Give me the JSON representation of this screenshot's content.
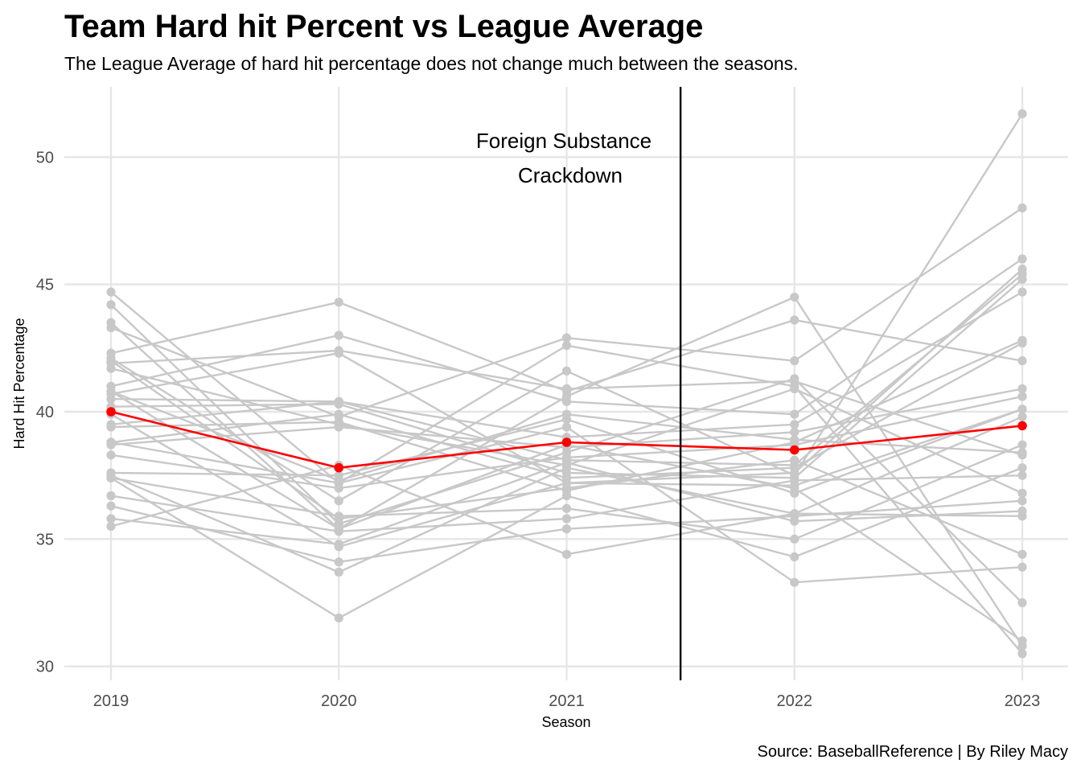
{
  "chart_data": {
    "type": "line",
    "title": "Team Hard hit Percent vs League Average",
    "subtitle": "The League Average of hard hit percentage does not change much between the seasons.",
    "xlabel": "Season",
    "ylabel": "Hard Hit Percentage",
    "caption": "Source: BaseballReference | By Riley Macy",
    "annotation": {
      "lines": [
        "Foreign Substance",
        "Crackdown"
      ],
      "x": 2021.5
    },
    "x": [
      2019,
      2020,
      2021,
      2022,
      2023
    ],
    "x_tick_labels": [
      "2019",
      "2020",
      "2021",
      "2022",
      "2023"
    ],
    "ylim": [
      29.5,
      53.0
    ],
    "y_ticks": [
      30,
      35,
      40,
      45,
      50
    ],
    "y_tick_labels": [
      "30",
      "35",
      "40",
      "45",
      "50"
    ],
    "grid": true,
    "colors": {
      "team": "#c8c8c8",
      "league_average": "#ff0000",
      "vline": "#000000",
      "grid": "#e6e6e6"
    },
    "league_average": {
      "values": [
        40.0,
        37.8,
        38.8,
        38.5,
        39.45
      ]
    },
    "teams": [
      [
        44.7,
        37.2,
        42.6,
        41.0,
        30.5
      ],
      [
        44.2,
        35.6,
        38.4,
        41.3,
        32.5
      ],
      [
        43.5,
        35.4,
        40.6,
        44.5,
        30.8
      ],
      [
        43.3,
        39.8,
        42.9,
        42.0,
        48.0
      ],
      [
        42.3,
        44.3,
        40.8,
        43.6,
        42.0
      ],
      [
        42.1,
        36.5,
        41.6,
        37.5,
        51.7
      ],
      [
        41.9,
        42.4,
        40.9,
        41.2,
        38.3
      ],
      [
        41.7,
        39.5,
        37.9,
        40.9,
        36.8
      ],
      [
        41.0,
        43.0,
        40.4,
        39.9,
        46.0
      ],
      [
        40.8,
        37.3,
        39.9,
        38.9,
        38.4
      ],
      [
        40.7,
        42.3,
        37.2,
        37.6,
        45.6
      ],
      [
        40.5,
        40.4,
        38.1,
        37.9,
        45.4
      ],
      [
        40.2,
        40.3,
        37.6,
        37.4,
        45.2
      ],
      [
        39.5,
        40.4,
        39.0,
        39.5,
        44.7
      ],
      [
        39.4,
        39.6,
        36.9,
        38.8,
        42.8
      ],
      [
        38.8,
        39.9,
        37.4,
        37.8,
        42.7
      ],
      [
        38.7,
        39.4,
        38.6,
        39.2,
        40.9
      ],
      [
        38.3,
        37.0,
        38.2,
        38.7,
        40.6
      ],
      [
        37.6,
        37.5,
        39.7,
        36.8,
        40.1
      ],
      [
        37.5,
        33.7,
        37.8,
        36.0,
        39.8
      ],
      [
        37.4,
        35.9,
        36.2,
        35.0,
        38.7
      ],
      [
        37.4,
        31.9,
        36.7,
        34.3,
        37.8
      ],
      [
        36.7,
        35.3,
        35.8,
        37.3,
        37.5
      ],
      [
        36.3,
        34.1,
        35.4,
        35.9,
        36.5
      ],
      [
        35.8,
        34.8,
        38.0,
        35.7,
        36.1
      ],
      [
        35.5,
        37.9,
        34.4,
        36.0,
        35.9
      ],
      [
        42.0,
        35.8,
        37.0,
        38.1,
        34.4
      ],
      [
        38.8,
        37.2,
        39.4,
        33.3,
        33.9
      ],
      [
        40.8,
        35.4,
        38.7,
        37.0,
        31.0
      ],
      [
        39.9,
        34.7,
        37.2,
        37.1,
        40.1
      ]
    ]
  }
}
